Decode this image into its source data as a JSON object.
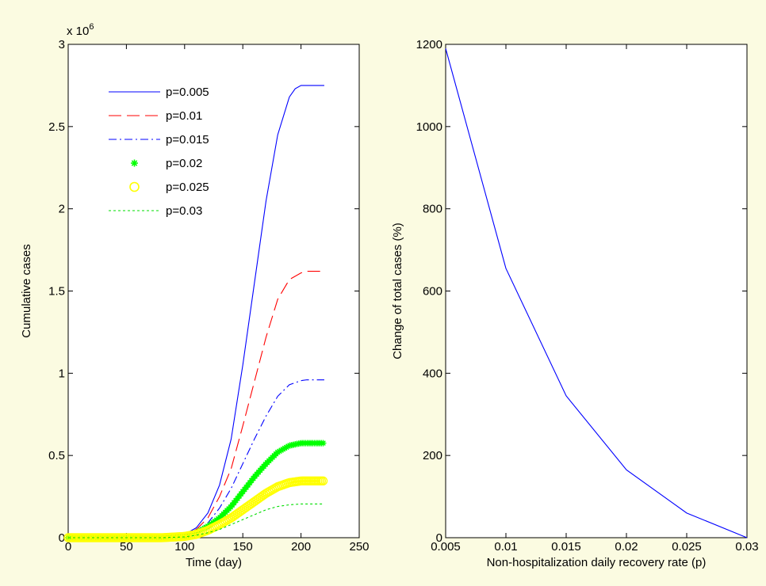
{
  "chart_data": [
    {
      "type": "line",
      "xlabel": "Time (day)",
      "ylabel": "Cumulative cases",
      "y_multiplier_label": "x 10",
      "y_multiplier_exponent": "6",
      "xlim": [
        0,
        250
      ],
      "ylim": [
        0,
        3
      ],
      "xticks": [
        {
          "value": 0,
          "label": "0"
        },
        {
          "value": 50,
          "label": "50"
        },
        {
          "value": 100,
          "label": "100"
        },
        {
          "value": 150,
          "label": "150"
        },
        {
          "value": 200,
          "label": "200"
        },
        {
          "value": 250,
          "label": "250"
        }
      ],
      "yticks": [
        {
          "value": 0,
          "label": "0"
        },
        {
          "value": 0.5,
          "label": "0.5"
        },
        {
          "value": 1,
          "label": "1"
        },
        {
          "value": 1.5,
          "label": "1.5"
        },
        {
          "value": 2,
          "label": "2"
        },
        {
          "value": 2.5,
          "label": "2.5"
        },
        {
          "value": 3,
          "label": "3"
        }
      ],
      "grid": false,
      "legend_position": "top-left",
      "series": [
        {
          "name": "p=0.005",
          "color": "#0000ff",
          "style": "solid",
          "x": [
            0,
            80,
            100,
            110,
            120,
            130,
            140,
            150,
            160,
            170,
            180,
            190,
            195,
            200,
            205,
            220
          ],
          "y": [
            0,
            0,
            0.02,
            0.06,
            0.15,
            0.32,
            0.6,
            1.05,
            1.55,
            2.05,
            2.45,
            2.68,
            2.73,
            2.75,
            2.75,
            2.75
          ]
        },
        {
          "name": "p=0.01",
          "color": "#ff0000",
          "style": "dashed",
          "x": [
            0,
            80,
            100,
            110,
            120,
            130,
            140,
            150,
            160,
            170,
            180,
            190,
            200,
            205,
            220
          ],
          "y": [
            0,
            0,
            0.015,
            0.05,
            0.12,
            0.25,
            0.42,
            0.68,
            0.95,
            1.22,
            1.45,
            1.57,
            1.61,
            1.62,
            1.62
          ]
        },
        {
          "name": "p=0.015",
          "color": "#0000ff",
          "style": "dashdot",
          "x": [
            0,
            80,
            100,
            110,
            120,
            130,
            140,
            150,
            160,
            170,
            180,
            190,
            200,
            205,
            220
          ],
          "y": [
            0,
            0,
            0.012,
            0.04,
            0.09,
            0.18,
            0.3,
            0.45,
            0.6,
            0.74,
            0.86,
            0.93,
            0.955,
            0.96,
            0.96
          ]
        },
        {
          "name": "p=0.02",
          "color": "#00ff00",
          "style": "star",
          "x": [
            0,
            80,
            100,
            110,
            120,
            130,
            140,
            150,
            160,
            170,
            180,
            190,
            200,
            210,
            220
          ],
          "y": [
            0,
            0,
            0.01,
            0.03,
            0.07,
            0.12,
            0.19,
            0.28,
            0.37,
            0.45,
            0.52,
            0.56,
            0.575,
            0.575,
            0.575
          ]
        },
        {
          "name": "p=0.025",
          "color": "#ffff00",
          "style": "circle",
          "x": [
            0,
            80,
            100,
            110,
            120,
            130,
            140,
            150,
            160,
            170,
            180,
            190,
            200,
            210,
            220
          ],
          "y": [
            0,
            0,
            0.008,
            0.02,
            0.045,
            0.08,
            0.12,
            0.17,
            0.22,
            0.27,
            0.31,
            0.335,
            0.345,
            0.345,
            0.345
          ]
        },
        {
          "name": "p=0.03",
          "color": "#00dd00",
          "style": "dotted",
          "x": [
            0,
            80,
            100,
            110,
            120,
            130,
            140,
            150,
            160,
            170,
            180,
            190,
            200,
            210,
            220
          ],
          "y": [
            0,
            0,
            0.005,
            0.015,
            0.03,
            0.05,
            0.08,
            0.11,
            0.14,
            0.17,
            0.19,
            0.2,
            0.205,
            0.205,
            0.205
          ]
        }
      ]
    },
    {
      "type": "line",
      "xlabel": "Non-hospitalization daily recovery rate (p)",
      "ylabel": "Change of total cases (%)",
      "xlim": [
        0.005,
        0.03
      ],
      "ylim": [
        0,
        1200
      ],
      "xticks": [
        {
          "value": 0.005,
          "label": "0.005"
        },
        {
          "value": 0.01,
          "label": "0.01"
        },
        {
          "value": 0.015,
          "label": "0.015"
        },
        {
          "value": 0.02,
          "label": "0.02"
        },
        {
          "value": 0.025,
          "label": "0.025"
        },
        {
          "value": 0.03,
          "label": "0.03"
        }
      ],
      "yticks": [
        {
          "value": 0,
          "label": "0"
        },
        {
          "value": 200,
          "label": "200"
        },
        {
          "value": 400,
          "label": "400"
        },
        {
          "value": 600,
          "label": "600"
        },
        {
          "value": 800,
          "label": "800"
        },
        {
          "value": 1000,
          "label": "1000"
        },
        {
          "value": 1200,
          "label": "1200"
        }
      ],
      "grid": false,
      "series": [
        {
          "color": "#0000ff",
          "style": "solid",
          "x": [
            0.005,
            0.01,
            0.015,
            0.02,
            0.025,
            0.03
          ],
          "y": [
            1190,
            655,
            345,
            165,
            60,
            0
          ]
        }
      ]
    }
  ]
}
